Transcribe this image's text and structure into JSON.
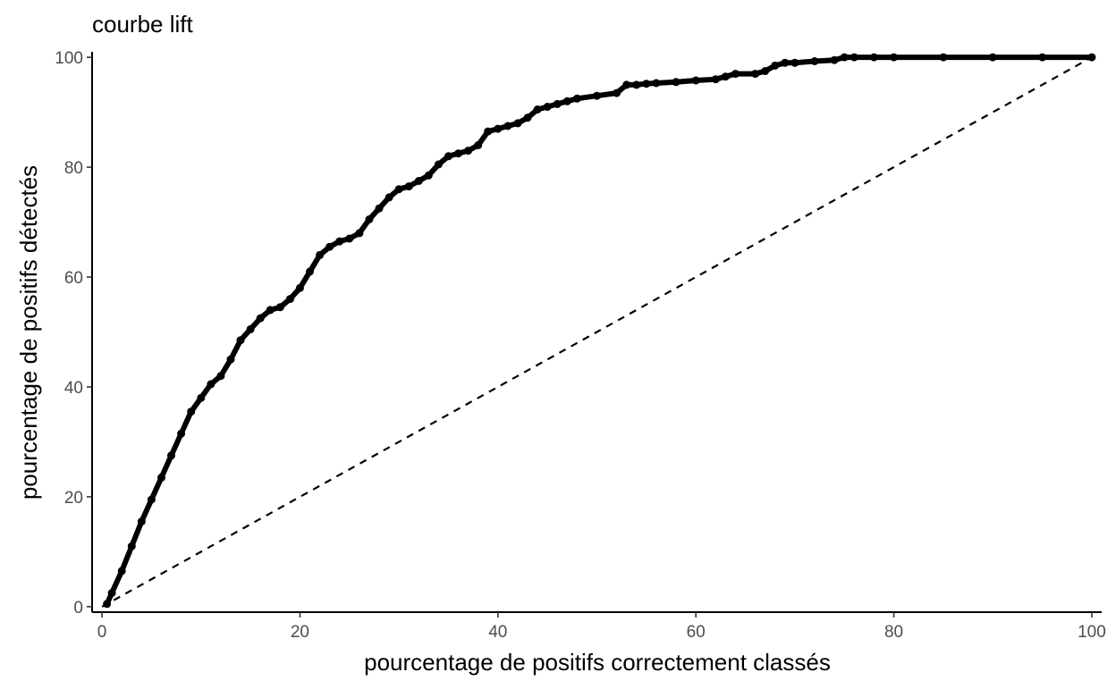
{
  "chart_data": {
    "type": "line",
    "title": "courbe lift",
    "xlabel": "pourcentage de positifs correctement classés",
    "ylabel": "pourcentage de positifs détectés",
    "xlim": [
      0,
      100
    ],
    "ylim": [
      0,
      100
    ],
    "x_ticks": [
      0,
      20,
      40,
      60,
      80,
      100
    ],
    "y_ticks": [
      0,
      20,
      40,
      60,
      80,
      100
    ],
    "grid": false,
    "legend": "none",
    "series": [
      {
        "style": "thick points",
        "color": "#000000",
        "x": [
          0.5,
          1,
          2,
          3,
          4,
          5,
          6,
          7,
          8,
          9,
          10,
          11,
          12,
          13,
          14,
          15,
          16,
          17,
          18,
          19,
          20,
          21,
          22,
          23,
          24,
          25,
          26,
          27,
          28,
          29,
          30,
          31,
          32,
          33,
          34,
          35,
          36,
          37,
          38,
          39,
          40,
          41,
          42,
          43,
          44,
          45,
          46,
          47,
          48,
          50,
          52,
          53,
          54,
          55,
          56,
          58,
          60,
          62,
          63,
          64,
          66,
          67,
          68,
          69,
          70,
          72,
          74,
          75,
          76,
          78,
          80,
          85,
          90,
          95,
          100
        ],
        "y": [
          0.5,
          2.5,
          6.5,
          11,
          15.5,
          19.5,
          23.5,
          27.5,
          31.5,
          35.5,
          38,
          40.5,
          42,
          45,
          48.5,
          50.5,
          52.5,
          54,
          54.5,
          56,
          58,
          61,
          64,
          65.5,
          66.5,
          67,
          68,
          70.5,
          72.5,
          74.5,
          76,
          76.5,
          77.5,
          78.5,
          80.5,
          82,
          82.5,
          83,
          84,
          86.5,
          87,
          87.5,
          88,
          89,
          90.5,
          91,
          91.5,
          92,
          92.5,
          93,
          93.5,
          95,
          95,
          95.2,
          95.3,
          95.5,
          95.8,
          96,
          96.5,
          97,
          97,
          97.5,
          98.5,
          99,
          99,
          99.3,
          99.5,
          100,
          100,
          100,
          100,
          100,
          100,
          100,
          100
        ]
      },
      {
        "style": "dashed",
        "color": "#000000",
        "x": [
          0,
          100
        ],
        "y": [
          0,
          100
        ]
      }
    ]
  }
}
